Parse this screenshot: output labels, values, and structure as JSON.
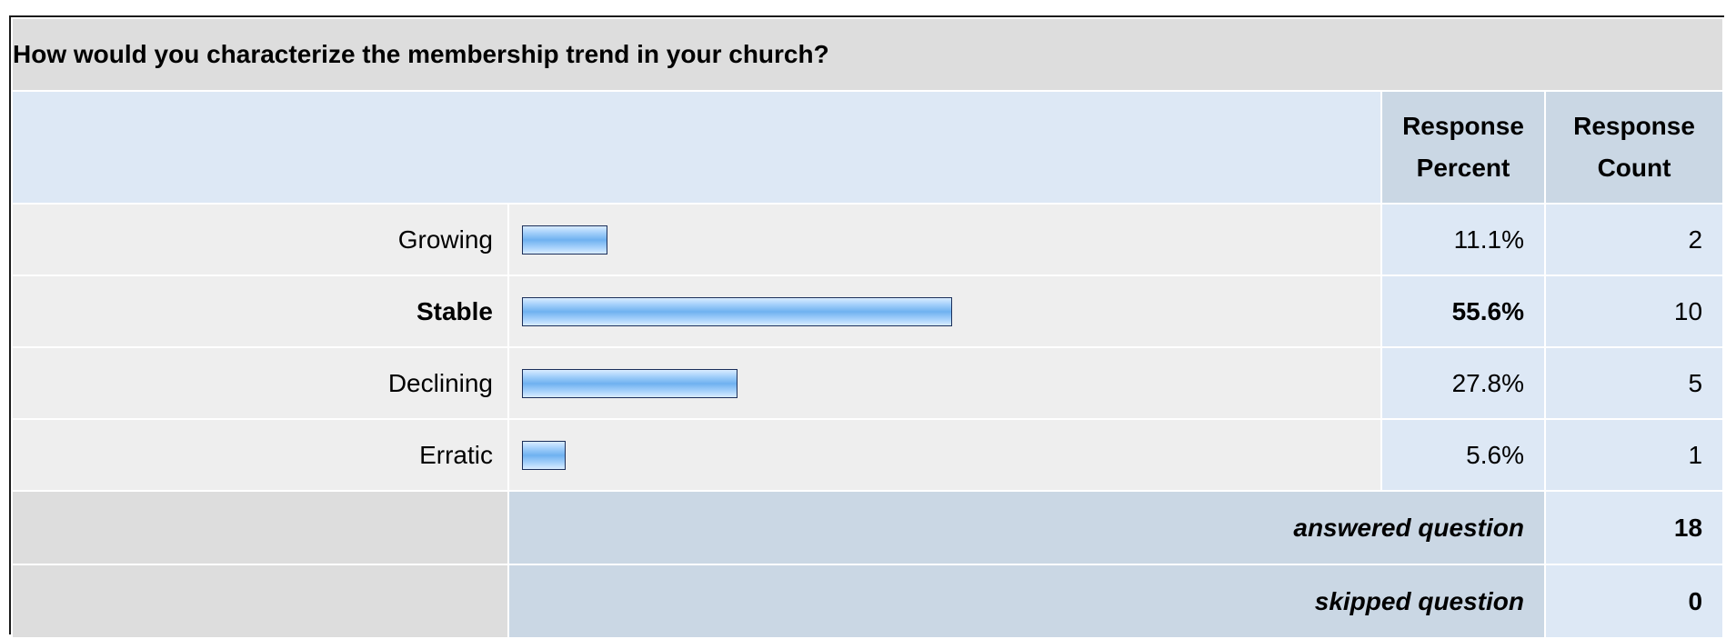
{
  "question": "How would you characterize the membership trend in your church?",
  "headers": {
    "percent": [
      "Response",
      "Percent"
    ],
    "count": [
      "Response",
      "Count"
    ]
  },
  "chart_data": {
    "type": "bar",
    "orientation": "horizontal",
    "categories": [
      "Growing",
      "Stable",
      "Declining",
      "Erratic"
    ],
    "values": [
      11.1,
      55.6,
      27.8,
      5.6
    ],
    "counts": [
      2,
      10,
      5,
      1
    ],
    "percent_labels": [
      "11.1%",
      "55.6%",
      "27.8%",
      "5.6%"
    ],
    "highlight_index": 1,
    "xlim": [
      0,
      100
    ],
    "bar_color": "#6fb1f0",
    "bar_border": "#1b2f5a"
  },
  "summary": {
    "answered_label": "answered question",
    "answered_value": "18",
    "skipped_label": "skipped question",
    "skipped_value": "0"
  }
}
